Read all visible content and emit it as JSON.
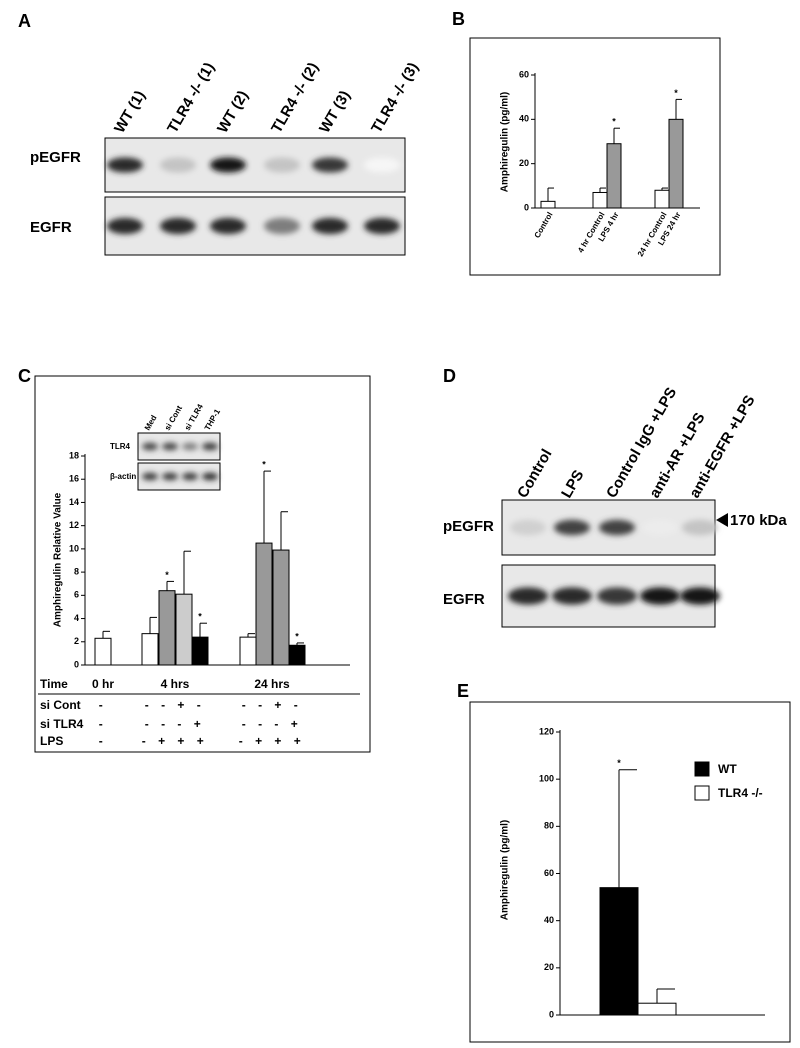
{
  "panels": {
    "a": "A",
    "b": "B",
    "c": "C",
    "d": "D",
    "e": "E"
  },
  "blot_a": {
    "lanes": [
      "WT (1)",
      "TLR4 -/- (1)",
      "WT (2)",
      "TLR4 -/- (2)",
      "WT (3)",
      "TLR4 -/- (3)"
    ],
    "rows": [
      "pEGFR",
      "EGFR"
    ]
  },
  "blot_d": {
    "lanes": [
      "Control",
      "LPS",
      "Control IgG +LPS",
      "anti-AR +LPS",
      "anti-EGFR +LPS"
    ],
    "rows": [
      "pEGFR",
      "EGFR"
    ],
    "marker": "170 kDa"
  },
  "chart_data": [
    {
      "type": "bar",
      "ylabel": "Amphiregulin (pg/ml)",
      "categories": [
        "Control",
        "4 hr Control",
        "LPS 4 hr",
        "24 hr Control",
        "LPS 24 hr"
      ],
      "values": [
        3,
        7,
        29,
        8,
        40
      ],
      "errors": [
        6,
        2,
        7,
        1,
        9
      ],
      "colors": [
        "#ffffff",
        "#ffffff",
        "#999999",
        "#ffffff",
        "#999999"
      ],
      "significance": [
        null,
        null,
        "*",
        null,
        "*"
      ],
      "ylim": [
        0,
        60
      ],
      "yticks": [
        0,
        20,
        40,
        60
      ]
    },
    {
      "type": "bar",
      "ylabel": "Amphiregulin Relative Value",
      "values": [
        2.3,
        2.7,
        6.4,
        6.1,
        2.4,
        2.4,
        10.5,
        9.9,
        1.7
      ],
      "errors": [
        0.6,
        1.4,
        0.8,
        3.7,
        1.2,
        0.3,
        6.2,
        3.3,
        0.2
      ],
      "colors": [
        "#ffffff",
        "#ffffff",
        "#999999",
        "#cccccc",
        "#000000",
        "#ffffff",
        "#999999",
        "#999999",
        "#000000"
      ],
      "significance": [
        null,
        null,
        "*",
        null,
        "*",
        null,
        "*",
        null,
        "*"
      ],
      "ylim": [
        0,
        18
      ],
      "yticks": [
        0,
        2,
        4,
        6,
        8,
        10,
        12,
        14,
        16,
        18
      ],
      "inset": {
        "lanes": [
          "Med",
          "si Cont",
          "si TLR4",
          "THP-1"
        ],
        "rows": [
          "TLR4",
          "β-actin"
        ]
      },
      "conditions": [
        [
          "Time",
          "0 hr",
          "4 hrs",
          "24 hrs"
        ],
        [
          "si Cont",
          "-",
          "- - + -",
          "- - + -"
        ],
        [
          "si TLR4",
          "-",
          "- - - +",
          "- - - +"
        ],
        [
          "LPS",
          "-",
          "- + + +",
          "- + + +"
        ]
      ]
    },
    {
      "type": "bar",
      "ylabel": "Amphiregulin (pg/ml)",
      "series": [
        {
          "name": "WT",
          "color": "#000000",
          "values": [
            54
          ],
          "errors": [
            50
          ],
          "significance": [
            "*"
          ]
        },
        {
          "name": "TLR4 -/-",
          "color": "#ffffff",
          "values": [
            5
          ],
          "errors": [
            6
          ]
        }
      ],
      "ylim": [
        0,
        120
      ],
      "yticks": [
        0,
        20,
        40,
        60,
        80,
        100,
        120
      ]
    }
  ]
}
